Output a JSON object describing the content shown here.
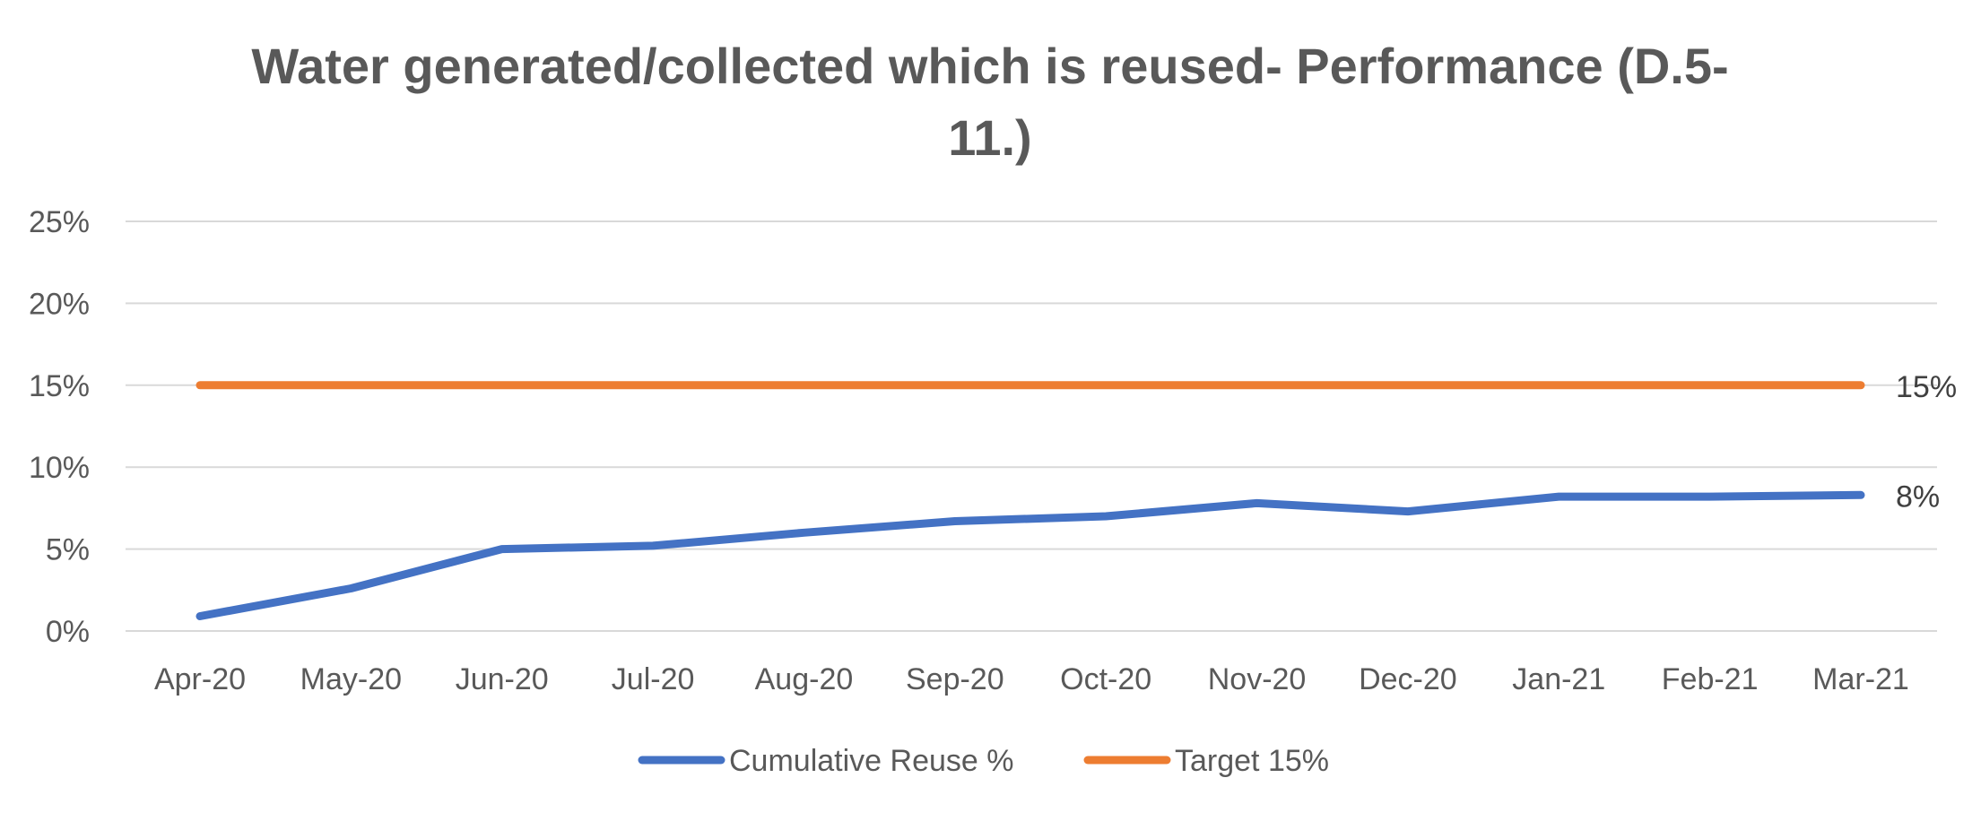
{
  "chart_data": {
    "type": "line",
    "title_line1": "Water generated/collected which is reused- Performance (D.5-",
    "title_line2": "11.)",
    "categories": [
      "Apr-20",
      "May-20",
      "Jun-20",
      "Jul-20",
      "Aug-20",
      "Sep-20",
      "Oct-20",
      "Nov-20",
      "Dec-20",
      "Jan-21",
      "Feb-21",
      "Mar-21"
    ],
    "y_ticks": [
      {
        "value": 0,
        "label": "0%"
      },
      {
        "value": 5,
        "label": "5%"
      },
      {
        "value": 10,
        "label": "10%"
      },
      {
        "value": 15,
        "label": "15%"
      },
      {
        "value": 20,
        "label": "20%"
      },
      {
        "value": 25,
        "label": "25%"
      }
    ],
    "ylim": [
      0,
      25
    ],
    "grid": true,
    "legend_position": "bottom",
    "series": [
      {
        "name": "Cumulative Reuse %",
        "color": "#4472C4",
        "values": [
          0.9,
          2.6,
          5.0,
          5.2,
          6.0,
          6.7,
          7.0,
          7.8,
          7.3,
          8.2,
          8.2,
          8.3
        ],
        "end_label": "8%"
      },
      {
        "name": "Target 15%",
        "color": "#ED7D31",
        "values": [
          15,
          15,
          15,
          15,
          15,
          15,
          15,
          15,
          15,
          15,
          15,
          15
        ],
        "end_label": "15%"
      }
    ]
  }
}
